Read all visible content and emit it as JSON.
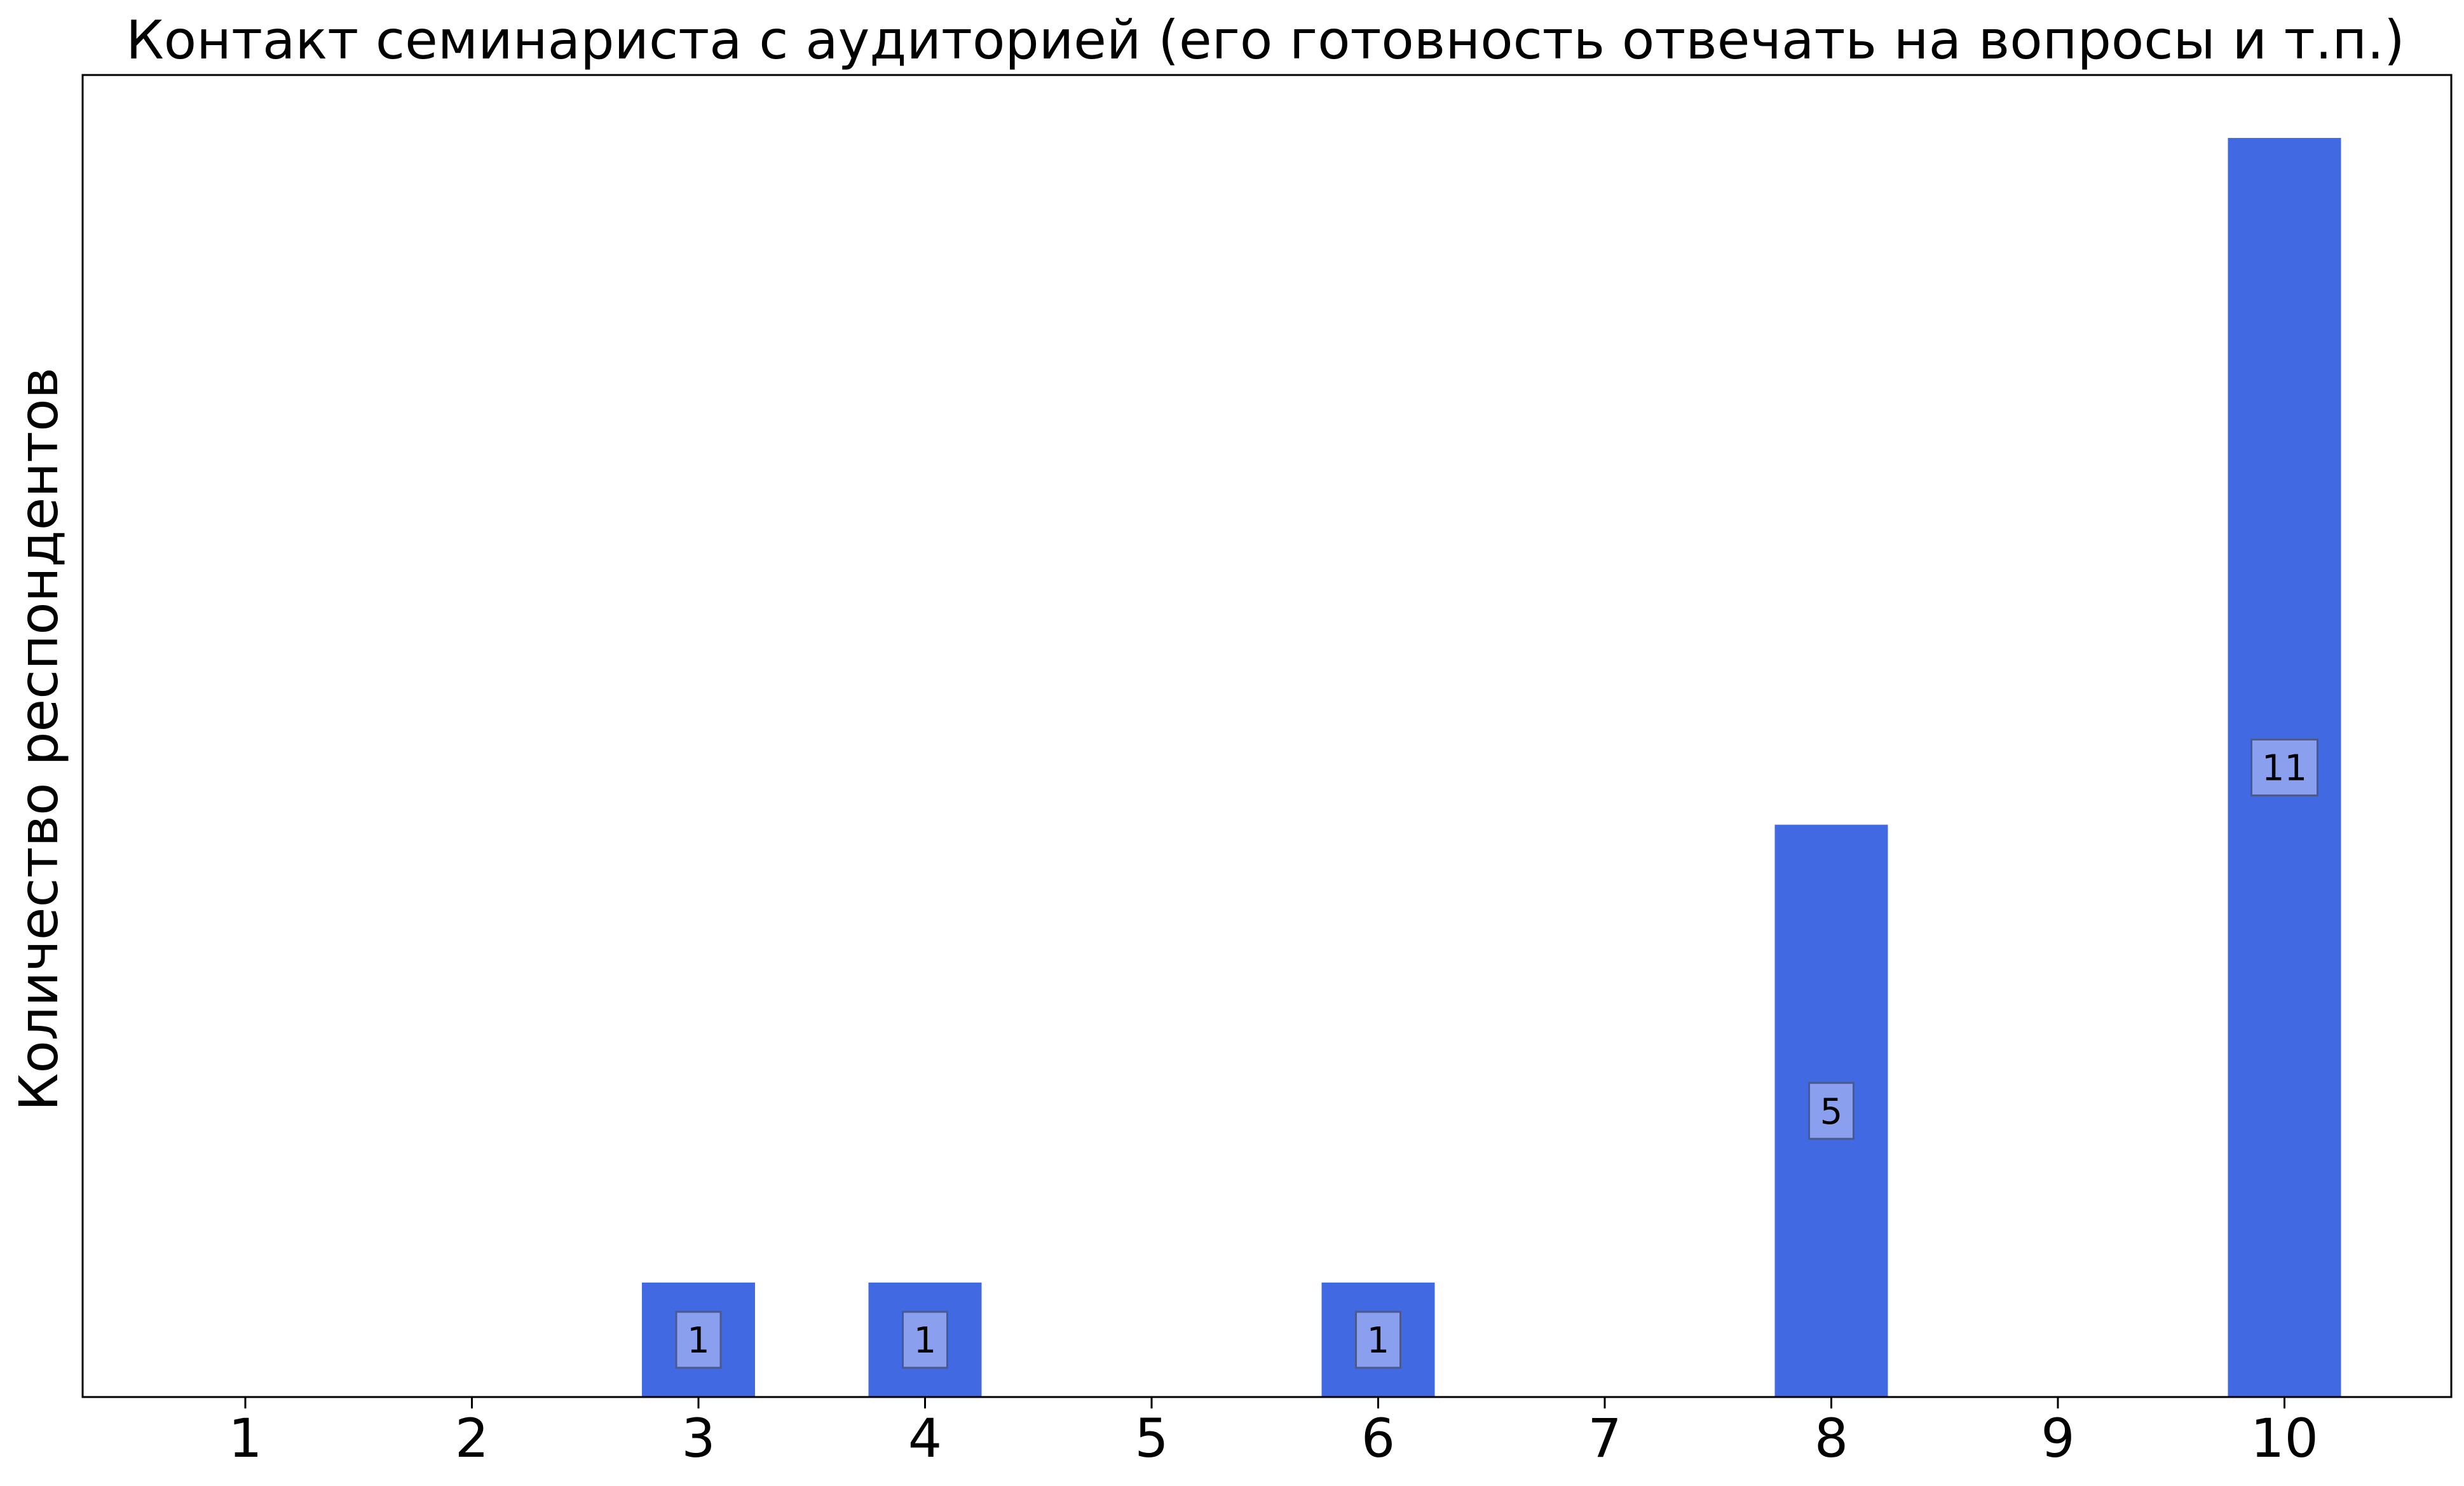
{
  "chart_data": {
    "type": "bar",
    "title": "Контакт семинариста с аудиторией (его готовность отвечать на вопросы и т.п.)",
    "xlabel": "",
    "ylabel": "Количество респондентов",
    "categories": [
      "1",
      "2",
      "3",
      "4",
      "5",
      "6",
      "7",
      "8",
      "9",
      "10"
    ],
    "values": [
      0,
      0,
      1,
      1,
      0,
      1,
      0,
      5,
      0,
      11
    ],
    "data_labels": [
      "",
      "",
      "1",
      "1",
      "",
      "1",
      "",
      "5",
      "",
      "11"
    ],
    "ylim": [
      0,
      11.55
    ],
    "y_ticks_shown": false,
    "grid": false,
    "legend": "none",
    "bar_color": "#4169e1",
    "label_box_color": "#8aa0ee",
    "label_box_border": "#4a5a90"
  }
}
